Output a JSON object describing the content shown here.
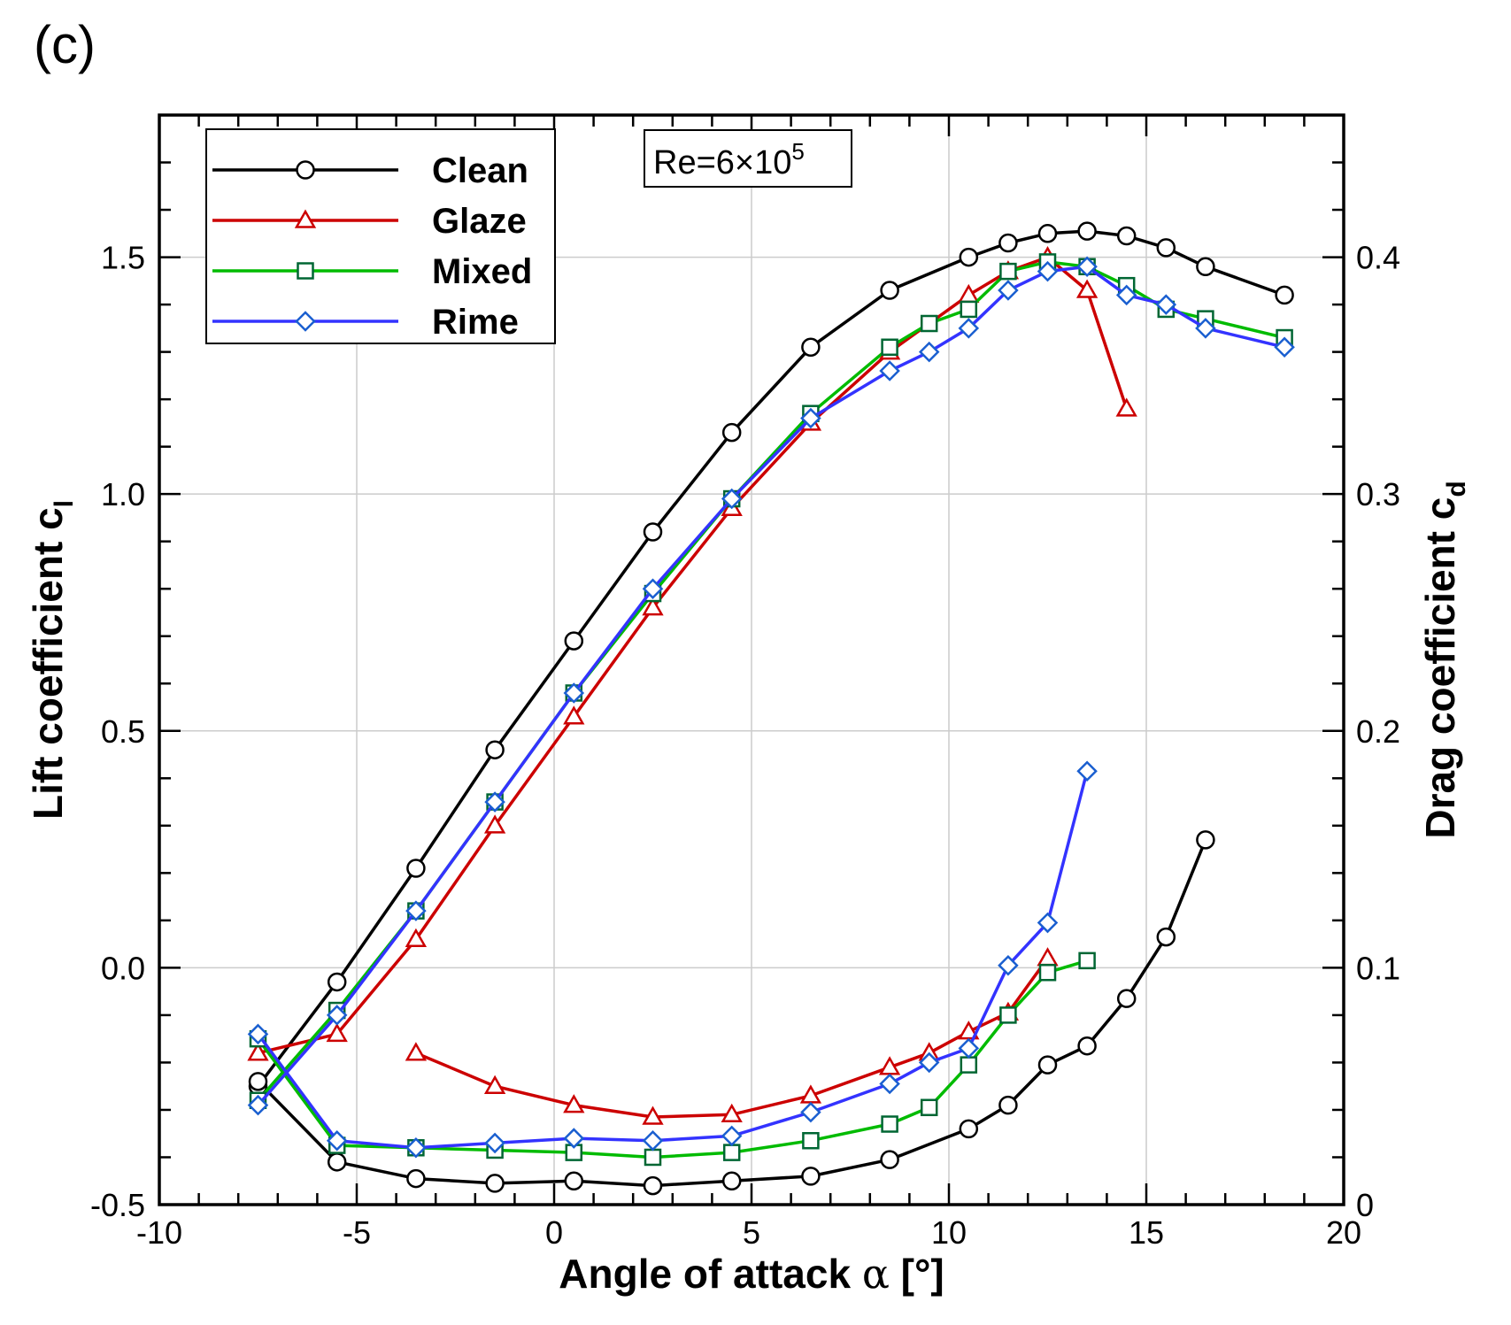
{
  "panel_label": "(c)",
  "chart_data": {
    "type": "line",
    "xlabel_prefix": "Angle of attack ",
    "xlabel_symbol": "α",
    "xlabel_suffix": " [°]",
    "ylabel_left": "Lift coefficient c",
    "ylabel_left_sub": "l",
    "ylabel_right": "Drag coefficient c",
    "ylabel_right_sub": "d",
    "xlim": [
      -10,
      20
    ],
    "ylim_left": [
      -0.5,
      1.8
    ],
    "ylim_right": [
      0,
      0.46
    ],
    "x_ticks": [
      "-10",
      "-5",
      "0",
      "5",
      "10",
      "15",
      "20"
    ],
    "y_left_ticks": [
      "-0.5",
      "0.0",
      "0.5",
      "1.0",
      "1.5"
    ],
    "y_right_ticks": [
      "0",
      "0.1",
      "0.2",
      "0.3",
      "0.4"
    ],
    "annotation": {
      "base": "Re=6×10",
      "exp": "5"
    },
    "series": [
      {
        "name": "Clean",
        "color": "#000000",
        "marker": "circle",
        "lift": {
          "x": [
            -7.5,
            -5.5,
            -3.5,
            -1.5,
            0.5,
            2.5,
            4.5,
            6.5,
            8.5,
            10.5,
            11.5,
            12.5,
            13.5,
            14.5,
            15.5,
            16.5,
            18.5
          ],
          "y": [
            -0.25,
            -0.03,
            0.21,
            0.46,
            0.69,
            0.92,
            1.13,
            1.31,
            1.43,
            1.5,
            1.53,
            1.55,
            1.555,
            1.545,
            1.52,
            1.48,
            1.42
          ]
        },
        "drag": {
          "x": [
            -7.5,
            -5.5,
            -3.5,
            -1.5,
            0.5,
            2.5,
            4.5,
            6.5,
            8.5,
            10.5,
            11.5,
            12.5,
            13.5,
            14.5,
            15.5,
            16.5
          ],
          "y": [
            0.052,
            0.018,
            0.011,
            0.009,
            0.01,
            0.008,
            0.01,
            0.012,
            0.019,
            0.032,
            0.042,
            0.059,
            0.067,
            0.087,
            0.113,
            0.154
          ]
        }
      },
      {
        "name": "Glaze",
        "color": "#cc0000",
        "marker": "triangle",
        "lift": {
          "x": [
            -7.5,
            -5.5,
            -3.5,
            -1.5,
            0.5,
            2.5,
            4.5,
            6.5,
            8.5,
            10.5,
            11.5,
            12.5,
            13.5,
            14.5
          ],
          "y": [
            -0.18,
            -0.14,
            0.06,
            0.3,
            0.53,
            0.76,
            0.97,
            1.15,
            1.3,
            1.42,
            1.47,
            1.5,
            1.43,
            1.18
          ]
        },
        "drag": {
          "x": [
            -3.5,
            -1.5,
            0.5,
            2.5,
            4.5,
            6.5,
            8.5,
            9.5,
            10.5,
            11.5,
            12.5
          ],
          "y": [
            0.064,
            0.05,
            0.042,
            0.037,
            0.038,
            0.046,
            0.058,
            0.064,
            0.073,
            0.081,
            0.104
          ]
        }
      },
      {
        "name": "Mixed",
        "color": "#00bb00",
        "marker": "square",
        "lift": {
          "x": [
            -7.5,
            -5.5,
            -3.5,
            -1.5,
            0.5,
            2.5,
            4.5,
            6.5,
            8.5,
            9.5,
            10.5,
            11.5,
            12.5,
            13.5,
            14.5,
            15.5,
            16.5,
            18.5
          ],
          "y": [
            -0.28,
            -0.09,
            0.12,
            0.35,
            0.58,
            0.79,
            0.99,
            1.17,
            1.31,
            1.36,
            1.39,
            1.47,
            1.49,
            1.48,
            1.44,
            1.39,
            1.37,
            1.33
          ]
        },
        "drag": {
          "x": [
            -7.5,
            -5.5,
            -3.5,
            -1.5,
            0.5,
            2.5,
            4.5,
            6.5,
            8.5,
            9.5,
            10.5,
            11.5,
            12.5,
            13.5
          ],
          "y": [
            0.07,
            0.025,
            0.024,
            0.023,
            0.022,
            0.02,
            0.022,
            0.027,
            0.034,
            0.041,
            0.059,
            0.08,
            0.098,
            0.103
          ]
        }
      },
      {
        "name": "Rime",
        "color": "#3333ff",
        "marker": "diamond",
        "lift": {
          "x": [
            -7.5,
            -5.5,
            -3.5,
            -1.5,
            0.5,
            2.5,
            4.5,
            6.5,
            8.5,
            9.5,
            10.5,
            11.5,
            12.5,
            13.5,
            14.5,
            15.5,
            16.5,
            18.5
          ],
          "y": [
            -0.29,
            -0.1,
            0.12,
            0.35,
            0.58,
            0.8,
            0.99,
            1.16,
            1.26,
            1.3,
            1.35,
            1.43,
            1.47,
            1.48,
            1.42,
            1.4,
            1.35,
            1.31
          ]
        },
        "drag": {
          "x": [
            -7.5,
            -5.5,
            -3.5,
            -1.5,
            0.5,
            2.5,
            4.5,
            6.5,
            8.5,
            9.5,
            10.5,
            11.5,
            12.5,
            13.5
          ],
          "y": [
            0.072,
            0.027,
            0.024,
            0.026,
            0.028,
            0.027,
            0.029,
            0.039,
            0.051,
            0.06,
            0.066,
            0.101,
            0.119,
            0.183
          ]
        }
      }
    ]
  }
}
